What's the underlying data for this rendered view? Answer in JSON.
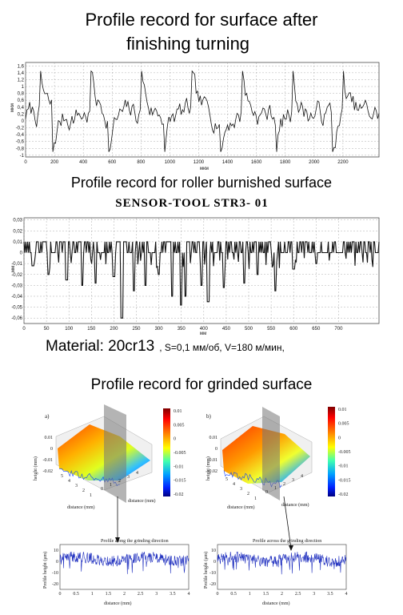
{
  "titles": {
    "chart1_line1": "Profile record for surface after",
    "chart1_line2": "finishing  turning",
    "chart2": "Profile record for roller burnished surface",
    "chart2_sub": "SENSOR-TOOL STR3- 01",
    "material_label": "Material:  20cr13",
    "material_params": ", S=0,1 мм/об, V=180 м/мин,",
    "chart3": "Profile record for grinded surface"
  },
  "colors": {
    "line": "#111111",
    "blue_profile": "#1f2fbf",
    "grid": "#888888"
  },
  "chart_data": [
    {
      "type": "line",
      "name": "finishing turning profile",
      "x_ticks": [
        "0",
        "200",
        "400",
        "600",
        "800",
        "1000",
        "1200",
        "1400",
        "1600",
        "1800",
        "2000",
        "2200"
      ],
      "y_ticks": [
        "1,6",
        "1,4",
        "1,2",
        "1",
        "0,8",
        "0,6",
        "0,4",
        "0,2",
        "0",
        "-0,2",
        "-0,4",
        "-0,6",
        "-0,8",
        "-1"
      ],
      "ylim": [
        -1.05,
        1.7
      ],
      "xlim": [
        0,
        2450
      ],
      "grid": true,
      "sample_count": 260,
      "ylabel": "мкм",
      "xlabel": "мкм"
    },
    {
      "type": "line",
      "name": "roller burnished profile",
      "x_ticks": [
        "0",
        "50",
        "100",
        "150",
        "200",
        "250",
        "300",
        "350",
        "400",
        "450",
        "500",
        "550",
        "600",
        "650",
        "700"
      ],
      "y_ticks": [
        "0,03",
        "0,02",
        "0,01",
        "0",
        "-0,01",
        "-0,02",
        "-0,03",
        "-0,04",
        "-0,05",
        "-0,06"
      ],
      "ylim": [
        -0.065,
        0.032
      ],
      "xlim": [
        0,
        790
      ],
      "grid": true,
      "sample_count": 400,
      "ylabel": "мм",
      "xlabel": "мм"
    },
    {
      "type": "line",
      "name": "Profile along the grinding direction",
      "title": "Profile along the grinding direction",
      "xlabel": "distance (mm)",
      "ylabel": "Profile height (μm)",
      "x_ticks": [
        "0",
        "0.5",
        "1",
        "1.5",
        "2",
        "2.5",
        "3",
        "3.5",
        "4"
      ],
      "y_ticks": [
        "10",
        "0",
        "-10",
        "-20"
      ],
      "xlim": [
        0,
        4
      ],
      "ylim": [
        -25,
        15
      ]
    },
    {
      "type": "line",
      "name": "Profile across the grinding direction",
      "title": "Profile across the grinding direction",
      "xlabel": "distance (mm)",
      "ylabel": "Profile height (μm)",
      "x_ticks": [
        "0",
        "0.5",
        "1",
        "1.5",
        "2",
        "2.5",
        "3",
        "3.5",
        "4"
      ],
      "y_ticks": [
        "10",
        "0",
        "-10",
        "-20"
      ],
      "xlim": [
        0,
        4
      ],
      "ylim": [
        -25,
        15
      ]
    },
    {
      "type": "heatmap",
      "name": "3D surface a",
      "panel_label": "a)",
      "zlabel": "height (mm)",
      "xlabel": "distance (mm)",
      "ylabel": "distance (mm)",
      "colorbar_ticks": [
        "0.01",
        "0.005",
        "0",
        "-0.005",
        "-0.01",
        "-0.015",
        "-0.02"
      ],
      "z_ticks": [
        "0.01",
        "0",
        "-0.01",
        "-0.02"
      ],
      "axis_ticks_a": [
        "5",
        "4",
        "3",
        "2",
        "1"
      ],
      "axis_ticks_b": [
        "0",
        "1",
        "2",
        "3",
        "4"
      ]
    },
    {
      "type": "heatmap",
      "name": "3D surface b",
      "panel_label": "b)",
      "zlabel": "height (mm)",
      "xlabel": "distance (mm)",
      "ylabel": "distance (mm)",
      "colorbar_ticks": [
        "0.01",
        "0.005",
        "0",
        "-0.005",
        "-0.01",
        "-0.015",
        "-0.02"
      ],
      "z_ticks": [
        "0.01",
        "0",
        "-0.01",
        "-0.02"
      ],
      "axis_ticks_a": [
        "5",
        "4",
        "3",
        "2",
        "1"
      ],
      "axis_ticks_b": [
        "0",
        "1",
        "2",
        "3",
        "4"
      ]
    }
  ]
}
